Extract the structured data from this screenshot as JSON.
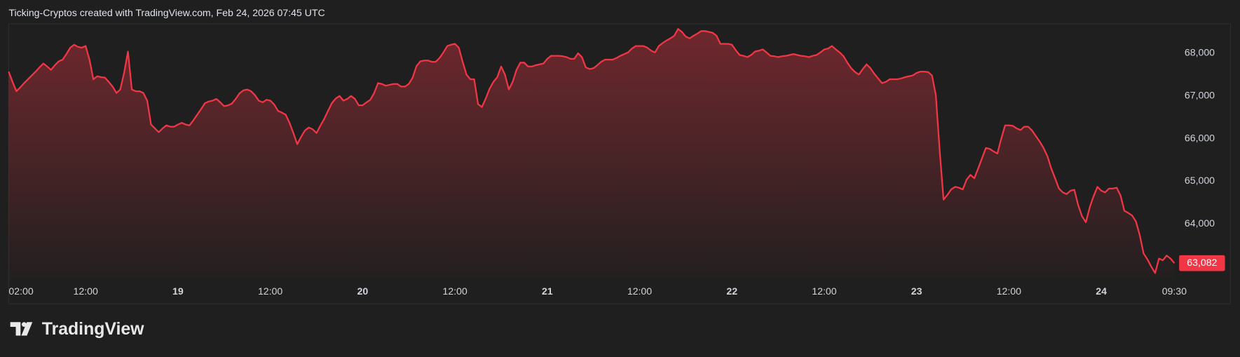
{
  "header": "Ticking-Cryptos created with TradingView.com, Feb 24, 2026 07:45 UTC",
  "logo": "TradingView",
  "chart_data": {
    "type": "area",
    "color": "#f23645",
    "grid": false,
    "categories": [
      "02:00",
      null,
      null,
      null,
      null,
      null,
      null,
      null,
      null,
      null,
      null,
      null,
      null,
      null,
      null,
      null,
      null,
      null,
      null,
      null,
      "12:00",
      null,
      null,
      null,
      null,
      null,
      null,
      null,
      null,
      null,
      null,
      null,
      null,
      null,
      null,
      null,
      null,
      null,
      null,
      null,
      null,
      null,
      null,
      null,
      "19",
      null,
      null,
      null,
      null,
      null,
      null,
      null,
      null,
      null,
      null,
      null,
      null,
      null,
      null,
      null,
      null,
      null,
      null,
      null,
      null,
      null,
      null,
      null,
      "12:00",
      null,
      null,
      null,
      null,
      null,
      null,
      null,
      null,
      null,
      null,
      null,
      null,
      null,
      null,
      null,
      null,
      null,
      null,
      null,
      null,
      null,
      null,
      null,
      "20",
      null,
      null,
      null,
      null,
      null,
      null,
      null,
      null,
      null,
      null,
      null,
      null,
      null,
      null,
      null,
      null,
      null,
      null,
      null,
      null,
      null,
      null,
      null,
      "12:00",
      null,
      null,
      null,
      null,
      null,
      null,
      null,
      null,
      null,
      null,
      null,
      null,
      null,
      null,
      null,
      null,
      null,
      null,
      null,
      null,
      null,
      null,
      null,
      "21",
      null,
      null,
      null,
      null,
      null,
      null,
      null,
      null,
      null,
      null,
      null,
      null,
      null,
      null,
      null,
      null,
      null,
      null,
      null,
      null,
      null,
      null,
      null,
      "12:00",
      null,
      null,
      null,
      null,
      null,
      null,
      null,
      null,
      null,
      null,
      null,
      null,
      null,
      null,
      null,
      null,
      null,
      null,
      null,
      null,
      null,
      null,
      null,
      "22",
      null,
      null,
      null,
      null,
      null,
      null,
      null,
      null,
      null,
      null,
      null,
      null,
      null,
      null,
      null,
      null,
      null,
      null,
      null,
      null,
      null,
      null,
      null,
      "12:00",
      null,
      null,
      null,
      null,
      null,
      null,
      null,
      null,
      null,
      null,
      null,
      null,
      null,
      null,
      null,
      null,
      null,
      null,
      null,
      null,
      null,
      null,
      null,
      "23",
      null,
      null,
      null,
      null,
      null,
      null,
      null,
      null,
      null,
      null,
      null,
      null,
      null,
      null,
      null,
      null,
      null,
      null,
      null,
      null,
      null,
      null,
      null,
      "12:00",
      null,
      null,
      null,
      null,
      null,
      null,
      null,
      null,
      null,
      null,
      null,
      null,
      null,
      null,
      null,
      null,
      null,
      null,
      null,
      null,
      null,
      null,
      null,
      "24",
      null,
      null,
      null,
      null,
      null,
      null,
      null,
      null,
      null,
      null,
      null,
      null,
      null,
      null,
      null,
      null,
      null,
      null,
      "09:30"
    ],
    "values": [
      67570,
      67330,
      67110,
      67200,
      67300,
      67390,
      67480,
      67570,
      67670,
      67760,
      67690,
      67610,
      67720,
      67810,
      67850,
      67980,
      68130,
      68200,
      68150,
      68130,
      68170,
      67850,
      67390,
      67460,
      67440,
      67430,
      67330,
      67220,
      67070,
      67150,
      67540,
      68040,
      67150,
      67110,
      67110,
      67070,
      66890,
      66330,
      66240,
      66150,
      66240,
      66310,
      66280,
      66280,
      66330,
      66370,
      66330,
      66310,
      66430,
      66560,
      66690,
      66830,
      66870,
      66890,
      66930,
      66850,
      66760,
      66780,
      66820,
      66930,
      67060,
      67130,
      67150,
      67110,
      67020,
      66890,
      66850,
      66910,
      66890,
      66800,
      66650,
      66610,
      66560,
      66370,
      66130,
      65870,
      66040,
      66190,
      66260,
      66220,
      66130,
      66300,
      66460,
      66650,
      66830,
      66940,
      67000,
      66890,
      66930,
      67000,
      66930,
      66780,
      66780,
      66850,
      66910,
      67070,
      67300,
      67280,
      67240,
      67260,
      67280,
      67280,
      67220,
      67220,
      67280,
      67430,
      67700,
      67810,
      67830,
      67830,
      67800,
      67800,
      67890,
      68020,
      68170,
      68200,
      68220,
      68130,
      67800,
      67500,
      67390,
      67390,
      66810,
      66740,
      66940,
      67170,
      67330,
      67440,
      67690,
      67500,
      67150,
      67330,
      67610,
      67780,
      67780,
      67690,
      67690,
      67720,
      67740,
      67760,
      67870,
      67940,
      67940,
      67940,
      67930,
      67910,
      67870,
      67870,
      68000,
      67910,
      67670,
      67630,
      67650,
      67720,
      67800,
      67850,
      67850,
      67850,
      67890,
      67940,
      67980,
      68020,
      68110,
      68170,
      68170,
      68170,
      68130,
      68060,
      68020,
      68170,
      68240,
      68300,
      68350,
      68410,
      68570,
      68500,
      68390,
      68350,
      68410,
      68460,
      68520,
      68520,
      68500,
      68480,
      68410,
      68220,
      68220,
      68220,
      68200,
      68070,
      67960,
      67940,
      67910,
      67960,
      68040,
      68060,
      68090,
      68020,
      67940,
      67930,
      67910,
      67930,
      67940,
      67960,
      67980,
      67960,
      67940,
      67930,
      67910,
      67940,
      67960,
      68020,
      68090,
      68110,
      68170,
      68090,
      68020,
      67930,
      67780,
      67650,
      67560,
      67500,
      67630,
      67740,
      67650,
      67520,
      67410,
      67300,
      67330,
      67390,
      67390,
      67390,
      67410,
      67440,
      67460,
      67480,
      67540,
      67570,
      67570,
      67560,
      67480,
      67020,
      65720,
      64570,
      64680,
      64810,
      64870,
      64850,
      64810,
      65040,
      65150,
      65070,
      65300,
      65540,
      65780,
      65760,
      65700,
      65650,
      66000,
      66310,
      66310,
      66300,
      66240,
      66200,
      66280,
      66280,
      66190,
      66060,
      65930,
      65780,
      65590,
      65300,
      65070,
      64830,
      64740,
      64700,
      64780,
      64800,
      64440,
      64180,
      64040,
      64390,
      64650,
      64870,
      64780,
      64740,
      64830,
      64830,
      64850,
      64670,
      64310,
      64260,
      64200,
      64060,
      63740,
      63310,
      63170,
      63000,
      62850,
      63190,
      63150,
      63260,
      63190,
      63082
    ],
    "last_value_label": "63,082",
    "ylim": [
      62720,
      68690
    ],
    "yticks": [
      {
        "value": 64000,
        "label": "64,000"
      },
      {
        "value": 65000,
        "label": "65,000"
      },
      {
        "value": 66000,
        "label": "66,000"
      },
      {
        "value": 67000,
        "label": "67,000"
      },
      {
        "value": 68000,
        "label": "68,000"
      }
    ]
  }
}
